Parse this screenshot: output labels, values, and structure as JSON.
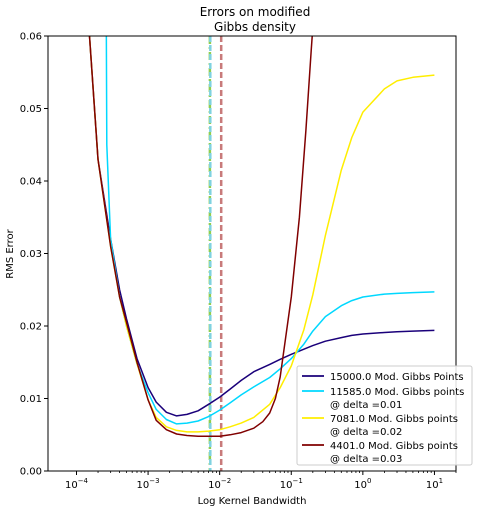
{
  "chart_data": {
    "type": "line",
    "title_lines": [
      "Errors on modified",
      "Gibbs density"
    ],
    "xlabel": "Log Kernel Bandwidth",
    "ylabel": "RMS Error",
    "xscale": "log",
    "xlim": [
      4e-05,
      20
    ],
    "ylim": [
      0,
      0.06
    ],
    "grid": false,
    "legend_position": "lower right",
    "x_ticks": [
      {
        "value": 0.0001,
        "base": "10",
        "exp": "−4"
      },
      {
        "value": 0.001,
        "base": "10",
        "exp": "−3"
      },
      {
        "value": 0.01,
        "base": "10",
        "exp": "−2"
      },
      {
        "value": 0.1,
        "base": "10",
        "exp": "−1"
      },
      {
        "value": 1,
        "base": "10",
        "exp": "0"
      },
      {
        "value": 10,
        "base": "10",
        "exp": "1"
      }
    ],
    "y_ticks": [
      {
        "value": 0.0,
        "label": "0.00"
      },
      {
        "value": 0.01,
        "label": "0.01"
      },
      {
        "value": 0.02,
        "label": "0.02"
      },
      {
        "value": 0.03,
        "label": "0.03"
      },
      {
        "value": 0.04,
        "label": "0.04"
      },
      {
        "value": 0.05,
        "label": "0.05"
      },
      {
        "value": 0.06,
        "label": "0.06"
      }
    ],
    "vlines": [
      {
        "x": 0.0073,
        "color": "#8fce50",
        "style": "dashdot"
      },
      {
        "x": 0.0074,
        "color": "#7fd2e0",
        "style": "dashed"
      },
      {
        "x": 0.0105,
        "color": "#c87a7a",
        "style": "dashed"
      }
    ],
    "series": [
      {
        "name_lines": [
          "15000.0 Mod. Gibbs Points"
        ],
        "color": "#1a007a",
        "x": [
          0.00014,
          0.0002,
          0.0003,
          0.0004,
          0.0005,
          0.0007,
          0.001,
          0.0013,
          0.0018,
          0.0025,
          0.0035,
          0.005,
          0.007,
          0.01,
          0.014,
          0.02,
          0.03,
          0.05,
          0.07,
          0.1,
          0.15,
          0.2,
          0.3,
          0.5,
          0.7,
          1,
          2,
          3,
          5,
          10
        ],
        "y": [
          0.065,
          0.043,
          0.032,
          0.025,
          0.021,
          0.0155,
          0.0115,
          0.0095,
          0.0081,
          0.0076,
          0.0078,
          0.0083,
          0.0092,
          0.0102,
          0.0113,
          0.0125,
          0.0137,
          0.0147,
          0.0154,
          0.0161,
          0.0168,
          0.0173,
          0.0179,
          0.0184,
          0.0187,
          0.0189,
          0.0191,
          0.0192,
          0.0193,
          0.0194
        ]
      },
      {
        "name_lines": [
          "11585.0 Mod. Gibbs points",
          "@ delta =0.01"
        ],
        "color": "#00d8ff",
        "x": [
          0.00026,
          0.000265,
          0.0003,
          0.0004,
          0.0005,
          0.0007,
          0.001,
          0.0013,
          0.0018,
          0.0025,
          0.0035,
          0.005,
          0.007,
          0.01,
          0.014,
          0.02,
          0.03,
          0.05,
          0.07,
          0.1,
          0.15,
          0.2,
          0.3,
          0.5,
          0.7,
          1,
          2,
          3,
          5,
          10
        ],
        "y": [
          0.065,
          0.045,
          0.032,
          0.024,
          0.02,
          0.0148,
          0.0108,
          0.0085,
          0.0071,
          0.0065,
          0.0066,
          0.0069,
          0.0075,
          0.0084,
          0.0094,
          0.0105,
          0.0116,
          0.0129,
          0.0141,
          0.0155,
          0.0175,
          0.0193,
          0.0213,
          0.0228,
          0.0235,
          0.024,
          0.0244,
          0.0245,
          0.0246,
          0.0247
        ]
      },
      {
        "name_lines": [
          "7081.0 Mod. Gibbs points",
          "@ delta =0.02"
        ],
        "color": "#ffee00",
        "x": [
          0.00014,
          0.0002,
          0.0003,
          0.0004,
          0.0005,
          0.0007,
          0.001,
          0.0013,
          0.0018,
          0.0025,
          0.0035,
          0.005,
          0.007,
          0.01,
          0.014,
          0.02,
          0.03,
          0.05,
          0.07,
          0.1,
          0.15,
          0.2,
          0.3,
          0.5,
          0.7,
          1,
          2,
          3,
          5,
          10
        ],
        "y": [
          0.065,
          0.043,
          0.031,
          0.024,
          0.02,
          0.0148,
          0.0098,
          0.0074,
          0.0061,
          0.0056,
          0.0054,
          0.0054,
          0.0055,
          0.0057,
          0.0061,
          0.0066,
          0.0074,
          0.0092,
          0.0115,
          0.0145,
          0.0195,
          0.0243,
          0.0325,
          0.0415,
          0.046,
          0.0495,
          0.0527,
          0.0538,
          0.0543,
          0.0546
        ]
      },
      {
        "name_lines": [
          "4401.0 Mod. Gibbs points",
          "@ delta =0.03"
        ],
        "color": "#800000",
        "x": [
          0.00014,
          0.0002,
          0.0003,
          0.0004,
          0.0005,
          0.0007,
          0.001,
          0.0013,
          0.0018,
          0.0025,
          0.0035,
          0.005,
          0.007,
          0.01,
          0.014,
          0.02,
          0.03,
          0.04,
          0.05,
          0.06,
          0.07,
          0.1,
          0.13,
          0.16,
          0.19,
          0.22
        ],
        "y": [
          0.065,
          0.043,
          0.031,
          0.024,
          0.0205,
          0.015,
          0.0098,
          0.007,
          0.0057,
          0.0051,
          0.0049,
          0.0048,
          0.0048,
          0.0048,
          0.005,
          0.0053,
          0.0059,
          0.0068,
          0.008,
          0.01,
          0.013,
          0.024,
          0.035,
          0.047,
          0.058,
          0.067
        ]
      }
    ]
  }
}
